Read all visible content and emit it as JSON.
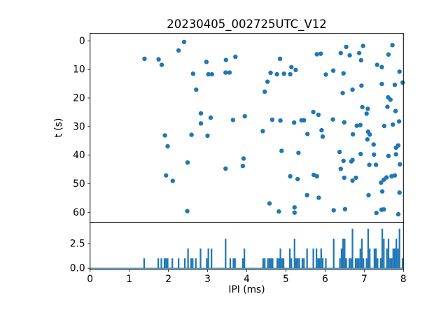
{
  "figure": {
    "title": "20230405_002725UTC_V12",
    "background_color": "#ffffff",
    "accent_color": "#1f77b4",
    "spine_color": "#000000"
  },
  "chart_data": [
    {
      "type": "scatter",
      "title": "20230405_002725UTC_V12",
      "xlabel": "",
      "ylabel": "t (s)",
      "xlim": [
        0,
        8
      ],
      "ylim": [
        63.5,
        -2.6
      ],
      "y_inverted": true,
      "yticks": [
        0,
        10,
        20,
        30,
        40,
        50,
        60
      ],
      "marker": "circle",
      "marker_color": "#1f77b4",
      "grid": false,
      "points": [
        [
          2.4,
          0.4
        ],
        [
          2.26,
          3.4
        ],
        [
          1.39,
          6.3
        ],
        [
          1.75,
          6.5
        ],
        [
          1.83,
          8.4
        ],
        [
          2.97,
          7.4
        ],
        [
          3.47,
          6.7
        ],
        [
          3.71,
          5.6
        ],
        [
          2.63,
          11.5
        ],
        [
          3.02,
          11.7
        ],
        [
          3.11,
          11.7
        ],
        [
          3.46,
          11.1
        ],
        [
          3.56,
          11.1
        ],
        [
          2.71,
          17.1
        ],
        [
          2.83,
          25.4
        ],
        [
          3.08,
          26.9
        ],
        [
          2.83,
          28.9
        ],
        [
          3.65,
          27.7
        ],
        [
          3.95,
          26.4
        ],
        [
          6.54,
          2.1
        ],
        [
          6.97,
          1.8
        ],
        [
          7.72,
          1.5
        ],
        [
          5.79,
          4.7
        ],
        [
          5.89,
          4.5
        ],
        [
          6.4,
          4.3
        ],
        [
          6.63,
          5.1
        ],
        [
          6.87,
          4.3
        ],
        [
          7.62,
          4.8
        ],
        [
          4.85,
          6.3
        ],
        [
          6.92,
          6.8
        ],
        [
          7.33,
          8.4
        ],
        [
          7.45,
          9.2
        ],
        [
          5.14,
          9.2
        ],
        [
          5.25,
          10.2
        ],
        [
          4.61,
          11.2
        ],
        [
          4.77,
          11.7
        ],
        [
          4.95,
          11.5
        ],
        [
          5.11,
          11.7
        ],
        [
          6.02,
          11.8
        ],
        [
          6.21,
          10.4
        ],
        [
          6.47,
          11.4
        ],
        [
          7.9,
          10.8
        ],
        [
          4.53,
          14.3
        ],
        [
          7.45,
          15.1
        ],
        [
          7.78,
          15.4
        ],
        [
          7.98,
          14.6
        ],
        [
          4.46,
          17.8
        ],
        [
          6.45,
          18.3
        ],
        [
          6.7,
          17.1
        ],
        [
          6.93,
          15.7
        ],
        [
          7.61,
          19.8
        ],
        [
          7.67,
          20.6
        ],
        [
          7.59,
          23.1
        ],
        [
          7.8,
          24.6
        ],
        [
          6.95,
          23.2
        ],
        [
          7.09,
          23.8
        ],
        [
          7.06,
          25.5
        ],
        [
          5.7,
          24.9
        ],
        [
          5.83,
          25.9
        ],
        [
          4.65,
          27.6
        ],
        [
          4.86,
          27.9
        ],
        [
          5.21,
          28.6
        ],
        [
          5.4,
          27.8
        ],
        [
          5.46,
          27.8
        ],
        [
          6.2,
          27.5
        ],
        [
          6.49,
          28.5
        ],
        [
          6.81,
          29.7
        ],
        [
          6.9,
          29.5
        ],
        [
          7.89,
          28.2
        ],
        [
          1.91,
          33.1
        ],
        [
          2.59,
          32.9
        ],
        [
          3.0,
          33.2
        ],
        [
          1.98,
          36.9
        ],
        [
          2.49,
          42.6
        ],
        [
          3.46,
          44.7
        ],
        [
          3.92,
          41.2
        ],
        [
          3.9,
          43.8
        ],
        [
          1.94,
          47.1
        ],
        [
          2.11,
          49.0
        ],
        [
          2.48,
          59.6
        ],
        [
          4.41,
          31.6
        ],
        [
          5.55,
          32.6
        ],
        [
          5.91,
          31.3
        ],
        [
          5.94,
          33.5
        ],
        [
          6.71,
          32.7
        ],
        [
          7.1,
          31.8
        ],
        [
          7.14,
          32.8
        ],
        [
          7.08,
          34.5
        ],
        [
          7.51,
          29.8
        ],
        [
          7.73,
          29.3
        ],
        [
          7.24,
          36.3
        ],
        [
          7.81,
          37.4
        ],
        [
          7.87,
          36.6
        ],
        [
          4.89,
          38.5
        ],
        [
          5.32,
          39.2
        ],
        [
          6.37,
          38.9
        ],
        [
          6.91,
          39.6
        ],
        [
          7.25,
          39.8
        ],
        [
          7.62,
          40.3
        ],
        [
          7.81,
          39.7
        ],
        [
          6.47,
          42.0
        ],
        [
          6.67,
          42.2
        ],
        [
          6.7,
          41.7
        ],
        [
          6.4,
          44.8
        ],
        [
          7.13,
          43.4
        ],
        [
          7.3,
          43.4
        ],
        [
          7.91,
          43.2
        ],
        [
          5.11,
          47.4
        ],
        [
          5.3,
          48.4
        ],
        [
          5.71,
          46.9
        ],
        [
          5.79,
          47.4
        ],
        [
          6.49,
          47.9
        ],
        [
          6.7,
          48.9
        ],
        [
          6.79,
          47.9
        ],
        [
          7.43,
          49.6
        ],
        [
          7.5,
          48.6
        ],
        [
          7.57,
          47.8
        ],
        [
          7.7,
          47.4
        ],
        [
          7.78,
          47.1
        ],
        [
          7.46,
          52.7
        ],
        [
          7.9,
          53.1
        ],
        [
          7.11,
          54.0
        ],
        [
          5.54,
          54.0
        ],
        [
          5.84,
          54.9
        ],
        [
          4.58,
          56.9
        ],
        [
          4.82,
          59.7
        ],
        [
          5.22,
          58.3
        ],
        [
          5.22,
          60.1
        ],
        [
          6.22,
          59.3
        ],
        [
          6.51,
          58.9
        ],
        [
          7.31,
          60.2
        ],
        [
          7.44,
          59.1
        ],
        [
          7.5,
          59.0
        ],
        [
          7.87,
          60.7
        ]
      ]
    },
    {
      "type": "histogram",
      "xlabel": "IPI (ms)",
      "ylabel": "",
      "xlim": [
        0,
        8
      ],
      "ylim": [
        -0.15,
        4.6
      ],
      "xticks": [
        0,
        1,
        2,
        3,
        4,
        5,
        6,
        7,
        8
      ],
      "yticks": [
        0,
        2.5
      ],
      "ytick_labels": [
        "0.0",
        "2.5"
      ],
      "bin_width": 0.04,
      "bin_range": [
        0,
        8
      ],
      "bar_color": "#1f77b4",
      "values_source": "x-values (IPI) of the scatter points in chart_data[0]",
      "grid": false
    }
  ]
}
